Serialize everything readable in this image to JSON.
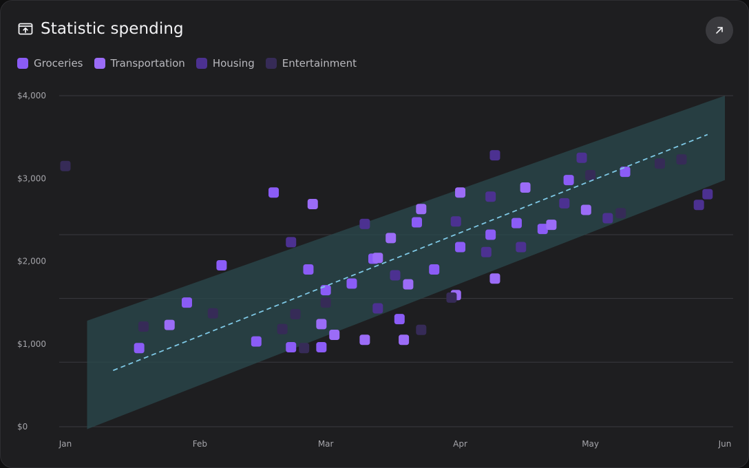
{
  "header": {
    "title": "Statistic spending",
    "title_icon": "wallet-upload-icon",
    "expand_icon": "arrow-up-right-icon"
  },
  "colors": {
    "background": "#1e1e20",
    "grid": "#3a3a3f",
    "band": "#2b4a4e",
    "trend": "#7fc9e6"
  },
  "chart_data": {
    "type": "scatter",
    "title": "Statistic spending",
    "x_axis_type": "date",
    "xlim": [
      "2024-01-01",
      "2024-06-01"
    ],
    "ylim": [
      0,
      4000
    ],
    "y_ticks": [
      0,
      1000,
      2000,
      3000,
      4000
    ],
    "y_tick_labels": [
      "$0",
      "$1,000",
      "$2,000",
      "$3,000",
      "$4,000"
    ],
    "x_ticks": [
      "2024-01-01",
      "2024-02-01",
      "2024-03-01",
      "2024-04-01",
      "2024-05-01",
      "2024-06-01"
    ],
    "x_tick_labels": [
      "Jan",
      "Feb",
      "Mar",
      "Apr",
      "May",
      "Jun"
    ],
    "grid_y": [
      0,
      780,
      1550,
      2320,
      4000
    ],
    "legend_position": "top-left",
    "series": [
      {
        "name": "Groceries",
        "color": "#8b5cf6",
        "points": [
          {
            "x": "2024-01-18",
            "y": 950
          },
          {
            "x": "2024-01-29",
            "y": 1500
          },
          {
            "x": "2024-02-06",
            "y": 1950
          },
          {
            "x": "2024-02-14",
            "y": 1030
          },
          {
            "x": "2024-02-18",
            "y": 2830
          },
          {
            "x": "2024-02-22",
            "y": 960
          },
          {
            "x": "2024-02-26",
            "y": 1900
          },
          {
            "x": "2024-02-29",
            "y": 960
          },
          {
            "x": "2024-03-01",
            "y": 1650
          },
          {
            "x": "2024-03-07",
            "y": 1730
          },
          {
            "x": "2024-03-12",
            "y": 2030
          },
          {
            "x": "2024-03-18",
            "y": 1300
          },
          {
            "x": "2024-03-22",
            "y": 2470
          },
          {
            "x": "2024-03-26",
            "y": 1900
          },
          {
            "x": "2024-04-01",
            "y": 2170
          },
          {
            "x": "2024-04-08",
            "y": 2320
          },
          {
            "x": "2024-04-14",
            "y": 2460
          },
          {
            "x": "2024-04-20",
            "y": 2390
          },
          {
            "x": "2024-04-26",
            "y": 2980
          },
          {
            "x": "2024-05-09",
            "y": 3080
          }
        ]
      },
      {
        "name": "Transportation",
        "color": "#9b6cf7",
        "points": [
          {
            "x": "2024-01-25",
            "y": 1230
          },
          {
            "x": "2024-02-27",
            "y": 2690
          },
          {
            "x": "2024-02-29",
            "y": 1240
          },
          {
            "x": "2024-03-03",
            "y": 1110
          },
          {
            "x": "2024-03-10",
            "y": 1050
          },
          {
            "x": "2024-03-13",
            "y": 2040
          },
          {
            "x": "2024-03-16",
            "y": 2280
          },
          {
            "x": "2024-03-19",
            "y": 1050
          },
          {
            "x": "2024-03-20",
            "y": 1720
          },
          {
            "x": "2024-03-23",
            "y": 2630
          },
          {
            "x": "2024-03-31",
            "y": 1590
          },
          {
            "x": "2024-04-01",
            "y": 2830
          },
          {
            "x": "2024-04-09",
            "y": 1790
          },
          {
            "x": "2024-04-16",
            "y": 2890
          },
          {
            "x": "2024-04-22",
            "y": 2440
          },
          {
            "x": "2024-04-30",
            "y": 2620
          }
        ]
      },
      {
        "name": "Housing",
        "color": "#4c3191",
        "points": [
          {
            "x": "2024-02-22",
            "y": 2230
          },
          {
            "x": "2024-03-10",
            "y": 2450
          },
          {
            "x": "2024-03-13",
            "y": 1430
          },
          {
            "x": "2024-03-17",
            "y": 1830
          },
          {
            "x": "2024-03-31",
            "y": 2480
          },
          {
            "x": "2024-04-07",
            "y": 2110
          },
          {
            "x": "2024-04-08",
            "y": 2780
          },
          {
            "x": "2024-04-09",
            "y": 3280
          },
          {
            "x": "2024-04-15",
            "y": 2170
          },
          {
            "x": "2024-04-25",
            "y": 2700
          },
          {
            "x": "2024-04-29",
            "y": 3250
          },
          {
            "x": "2024-05-05",
            "y": 2520
          },
          {
            "x": "2024-05-26",
            "y": 2680
          },
          {
            "x": "2024-05-28",
            "y": 2810
          }
        ]
      },
      {
        "name": "Entertainment",
        "color": "#362b57",
        "points": [
          {
            "x": "2024-01-01",
            "y": 3150
          },
          {
            "x": "2024-01-19",
            "y": 1210
          },
          {
            "x": "2024-02-04",
            "y": 1370
          },
          {
            "x": "2024-02-20",
            "y": 1180
          },
          {
            "x": "2024-02-23",
            "y": 1360
          },
          {
            "x": "2024-02-25",
            "y": 950
          },
          {
            "x": "2024-03-01",
            "y": 1500
          },
          {
            "x": "2024-03-23",
            "y": 1170
          },
          {
            "x": "2024-03-30",
            "y": 1560
          },
          {
            "x": "2024-05-01",
            "y": 3040
          },
          {
            "x": "2024-05-08",
            "y": 2580
          },
          {
            "x": "2024-05-17",
            "y": 3180
          },
          {
            "x": "2024-05-22",
            "y": 3230
          }
        ]
      }
    ],
    "trend_line": {
      "start": {
        "x": "2024-01-12",
        "y": 680
      },
      "end": {
        "x": "2024-05-28",
        "y": 3530
      }
    },
    "confidence_band": {
      "upper": [
        {
          "x": "2024-01-06",
          "y": 1280
        },
        {
          "x": "2024-06-01",
          "y": 4000
        }
      ],
      "lower": [
        {
          "x": "2024-01-06",
          "y": -30
        },
        {
          "x": "2024-06-01",
          "y": 2980
        }
      ]
    }
  }
}
